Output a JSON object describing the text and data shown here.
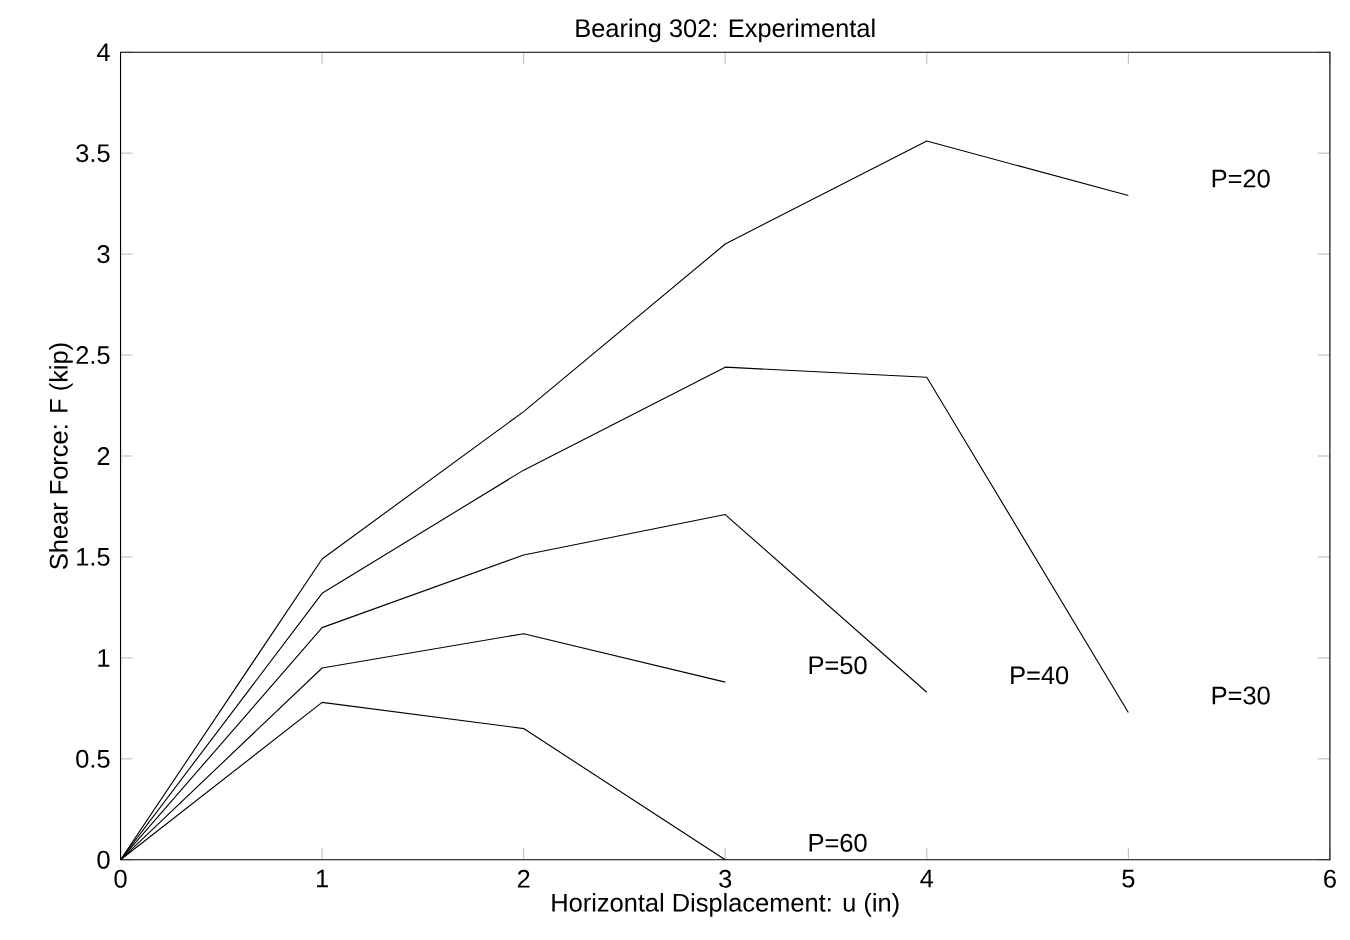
{
  "chart_data": {
    "type": "line",
    "title": "Bearing 302: Experimental",
    "xlabel": "Horizontal Displacement: u (in)",
    "ylabel": "Shear Force: F (kip)",
    "x": [
      0,
      1,
      2,
      3,
      4,
      5
    ],
    "series": [
      {
        "name": "P=20",
        "color": "#000000",
        "values": [
          0,
          1.49,
          2.22,
          3.05,
          3.56,
          3.29
        ]
      },
      {
        "name": "P=30",
        "color": "#000000",
        "values": [
          0,
          1.32,
          1.93,
          2.44,
          2.39,
          0.73
        ]
      },
      {
        "name": "P=40",
        "color": "#000000",
        "values": [
          0,
          1.15,
          1.51,
          1.71,
          0.83,
          null
        ]
      },
      {
        "name": "P=50",
        "color": "#000000",
        "values": [
          0,
          0.95,
          1.12,
          0.88,
          null,
          null
        ]
      },
      {
        "name": "P=60",
        "color": "#000000",
        "values": [
          0,
          0.78,
          0.65,
          0.0,
          null,
          null
        ]
      }
    ],
    "xlim": [
      0,
      6
    ],
    "ylim": [
      0,
      4
    ],
    "xticks": [
      0,
      1,
      2,
      3,
      4,
      5,
      6
    ],
    "yticks": [
      0,
      0.5,
      1,
      1.5,
      2,
      2.5,
      3,
      3.5,
      4
    ],
    "grid": false,
    "marker": "none",
    "line_style": "solid"
  }
}
